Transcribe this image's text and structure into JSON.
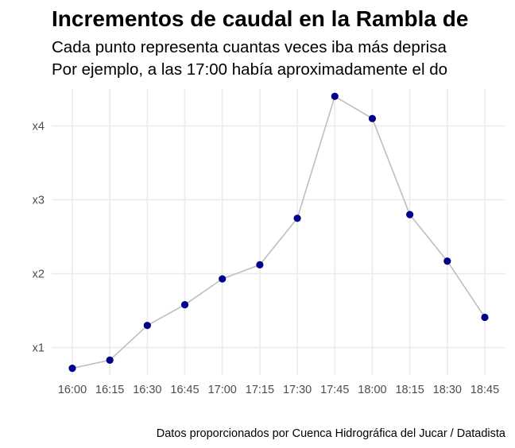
{
  "chart_data": {
    "type": "line",
    "title": "Incrementos de caudal en la Rambla de",
    "subtitle_lines": [
      "Cada punto representa cuantas veces iba más deprisa",
      "Por ejemplo, a las 17:00 había aproximadamente el do"
    ],
    "caption": "Datos proporcionados por Cuenca Hidrográfica del Jucar / Datadista",
    "categories": [
      "16:00",
      "16:15",
      "16:30",
      "16:45",
      "17:00",
      "17:15",
      "17:30",
      "17:45",
      "18:00",
      "18:15",
      "18:30",
      "18:45"
    ],
    "values": [
      0.72,
      0.83,
      1.3,
      1.58,
      1.93,
      2.12,
      2.75,
      4.4,
      4.1,
      2.8,
      2.17,
      1.41
    ],
    "y_ticks": [
      1,
      2,
      3,
      4
    ],
    "y_tick_labels": [
      "x1",
      "x2",
      "x3",
      "x4"
    ],
    "ylim": [
      0.63,
      4.5
    ],
    "grid": true,
    "line_color": "#bebebe",
    "point_color": "#00008b",
    "grid_color": "#ebebeb"
  }
}
